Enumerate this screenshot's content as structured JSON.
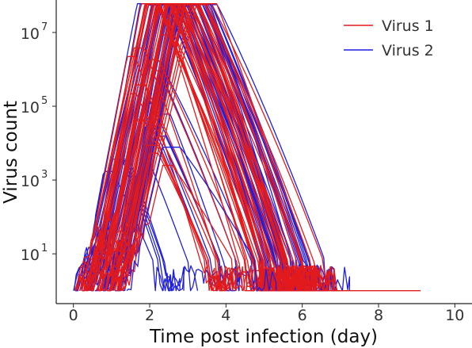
{
  "chart_data": {
    "type": "line",
    "title": "",
    "xlabel": "Time post infection (day)",
    "ylabel": "Virus count",
    "xlim": [
      -0.45,
      10.45
    ],
    "ylim_log10": [
      -0.35,
      7.88
    ],
    "y_scale": "log",
    "xticks": [
      {
        "value": 0,
        "label": "0"
      },
      {
        "value": 2,
        "label": "2"
      },
      {
        "value": 4,
        "label": "4"
      },
      {
        "value": 6,
        "label": "6"
      },
      {
        "value": 8,
        "label": "8"
      },
      {
        "value": 10,
        "label": "10"
      }
    ],
    "yticks": [
      {
        "exp": 1,
        "base": "10",
        "sup": "1"
      },
      {
        "exp": 3,
        "base": "10",
        "sup": "3"
      },
      {
        "exp": 5,
        "base": "10",
        "sup": "5"
      },
      {
        "exp": 7,
        "base": "10",
        "sup": "7"
      }
    ],
    "grid": false,
    "legend_position": "top-right",
    "series": [
      {
        "name": "Virus 1",
        "color": "#e31a1c"
      },
      {
        "name": "Virus 2",
        "color": "#1f1fe0"
      }
    ],
    "plateau_log10": 7.78,
    "floor_log10": 0,
    "traces_per_series": 55
  }
}
